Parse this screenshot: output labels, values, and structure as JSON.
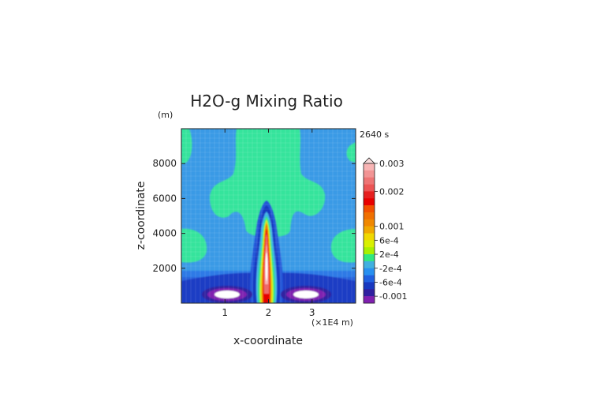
{
  "chart_data": {
    "type": "heatmap",
    "title": "H2O-g Mixing Ratio",
    "time_label": "2640 s",
    "xlabel": "x-coordinate",
    "ylabel": "z-coordinate",
    "x_unit": "(×1E4 m)",
    "y_unit": "(m)",
    "xlim": [
      0,
      4
    ],
    "ylim": [
      0,
      10000
    ],
    "x_ticks": [
      {
        "value": 1,
        "label": "1"
      },
      {
        "value": 2,
        "label": "2"
      },
      {
        "value": 3,
        "label": "3"
      }
    ],
    "y_ticks": [
      {
        "value": 2000,
        "label": "2000"
      },
      {
        "value": 4000,
        "label": "4000"
      },
      {
        "value": 6000,
        "label": "6000"
      },
      {
        "value": 8000,
        "label": "8000"
      }
    ],
    "colorbar": {
      "labels": [
        "0.003",
        "0.002",
        "0.001",
        "6e-4",
        "2e-4",
        "-2e-4",
        "-6e-4",
        "-0.001"
      ],
      "label_bands": [
        0,
        4,
        9,
        11,
        13,
        15,
        17,
        19
      ],
      "colors": [
        "#f8b4b4",
        "#f29494",
        "#ee7474",
        "#ec5454",
        "#e62020",
        "#e80000",
        "#f25000",
        "#f07000",
        "#f08800",
        "#f0a800",
        "#f0d800",
        "#d8f000",
        "#a8f000",
        "#30e880",
        "#40b0e0",
        "#2890f0",
        "#2060e0",
        "#1838c0",
        "#3020a0",
        "#8020b0"
      ]
    },
    "features": {
      "plume": {
        "x": 2.0,
        "z_top": 4800,
        "core_top": 4200
      },
      "dry_pockets": [
        {
          "x": 1.05,
          "z": 250
        },
        {
          "x": 2.95,
          "z": 250
        }
      ]
    },
    "colors": {
      "background_field": "#3a9ae6",
      "moist_region": "#30e8a0",
      "low_layer": "#2b6fe0"
    }
  }
}
